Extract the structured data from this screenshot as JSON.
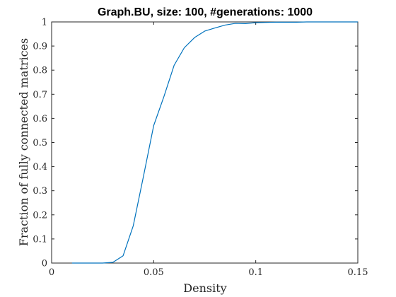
{
  "chart_data": {
    "type": "line",
    "title": "Graph.BU, size: 100, #generations: 1000",
    "xlabel": "Density",
    "ylabel": "Fraction of fully connected matrices",
    "xlim": [
      0,
      0.15
    ],
    "ylim": [
      0,
      1
    ],
    "xticks": [
      0,
      0.05,
      0.1,
      0.15
    ],
    "xtick_labels": [
      "0",
      "0.05",
      "0.1",
      "0.15"
    ],
    "yticks": [
      0,
      0.1,
      0.2,
      0.3,
      0.4,
      0.5,
      0.6,
      0.7,
      0.8,
      0.9,
      1
    ],
    "ytick_labels": [
      "0",
      "0.1",
      "0.2",
      "0.3",
      "0.4",
      "0.5",
      "0.6",
      "0.7",
      "0.8",
      "0.9",
      "1"
    ],
    "grid": false,
    "series": [
      {
        "color": "#0072bd",
        "x": [
          0.01,
          0.015,
          0.02,
          0.025,
          0.03,
          0.035,
          0.04,
          0.045,
          0.05,
          0.055,
          0.06,
          0.065,
          0.07,
          0.075,
          0.08,
          0.085,
          0.09,
          0.095,
          0.1,
          0.105,
          0.11,
          0.115,
          0.12,
          0.125,
          0.13,
          0.135,
          0.14,
          0.145,
          0.15
        ],
        "y": [
          0,
          0,
          0,
          0,
          0.003,
          0.03,
          0.155,
          0.36,
          0.57,
          0.69,
          0.82,
          0.893,
          0.935,
          0.962,
          0.975,
          0.987,
          0.994,
          0.993,
          0.997,
          0.998,
          0.999,
          0.999,
          0.999,
          1,
          1,
          1,
          1,
          1,
          1
        ]
      }
    ]
  }
}
